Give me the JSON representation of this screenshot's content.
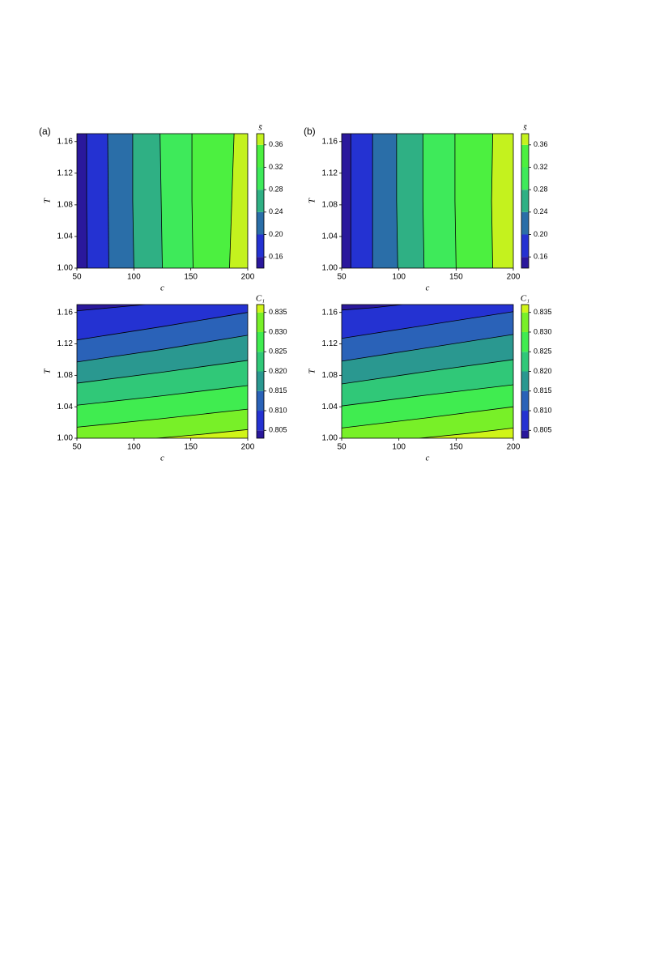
{
  "chart_data": [
    {
      "type": "contour",
      "panel_label": "(a)",
      "xlabel": "c",
      "ylabel": "T",
      "colorbar_label": "s̄",
      "xlim": [
        50,
        200
      ],
      "ylim": [
        1.0,
        1.17
      ],
      "xticks": [
        50,
        100,
        150,
        200
      ],
      "yticks": [
        {
          "value": 1.0,
          "label": "1.00"
        },
        1.04,
        1.08,
        1.12,
        1.16
      ],
      "levels": [
        0.14,
        0.16,
        0.2,
        0.24,
        0.28,
        0.32,
        0.36,
        0.38
      ],
      "colors": [
        "#2a189c",
        "#2432d2",
        "#2a6ea8",
        "#2fb084",
        "#3eea5a",
        "#4cf040",
        "#c4f21e"
      ],
      "colorbar_ticks": [
        0.16,
        {
          "value": 0.2,
          "label": "0.20"
        },
        0.24,
        0.28,
        0.32,
        0.36
      ],
      "contours": [
        {
          "c": [
            59,
            58.5,
            58.5
          ],
          "T": [
            1.0,
            1.085,
            1.17
          ]
        },
        {
          "c": [
            78,
            77.5,
            77
          ],
          "T": [
            1.0,
            1.085,
            1.17
          ]
        },
        {
          "c": [
            100,
            99,
            99
          ],
          "T": [
            1.0,
            1.085,
            1.17
          ]
        },
        {
          "c": [
            125,
            124,
            123
          ],
          "T": [
            1.0,
            1.085,
            1.17
          ]
        },
        {
          "c": [
            152,
            151,
            151
          ],
          "T": [
            1.0,
            1.085,
            1.17
          ]
        },
        {
          "c": [
            184,
            186,
            188
          ],
          "T": [
            1.0,
            1.085,
            1.17
          ]
        }
      ]
    },
    {
      "type": "contour",
      "panel_label": "(b)",
      "xlabel": "c",
      "ylabel": "T",
      "colorbar_label": "s̄",
      "xlim": [
        50,
        200
      ],
      "ylim": [
        1.0,
        1.17
      ],
      "xticks": [
        50,
        100,
        150,
        200
      ],
      "yticks": [
        {
          "value": 1.0,
          "label": "1.00"
        },
        1.04,
        1.08,
        1.12,
        1.16
      ],
      "levels": [
        0.14,
        0.16,
        0.2,
        0.24,
        0.28,
        0.32,
        0.36,
        0.38
      ],
      "colors": [
        "#2a189c",
        "#2432d2",
        "#2a6ea8",
        "#2fb084",
        "#3eea5a",
        "#4cf040",
        "#c4f21e"
      ],
      "colorbar_ticks": [
        0.16,
        {
          "value": 0.2,
          "label": "0.20"
        },
        0.24,
        0.28,
        0.32,
        0.36
      ],
      "contours": [
        {
          "c": [
            58,
            58,
            58
          ],
          "T": [
            1.0,
            1.085,
            1.17
          ]
        },
        {
          "c": [
            77,
            77,
            77
          ],
          "T": [
            1.0,
            1.085,
            1.17
          ]
        },
        {
          "c": [
            99,
            98,
            98
          ],
          "T": [
            1.0,
            1.085,
            1.17
          ]
        },
        {
          "c": [
            122,
            121,
            121
          ],
          "T": [
            1.0,
            1.085,
            1.17
          ]
        },
        {
          "c": [
            150,
            149,
            149
          ],
          "T": [
            1.0,
            1.085,
            1.17
          ]
        },
        {
          "c": [
            182,
            181,
            182
          ],
          "T": [
            1.0,
            1.085,
            1.17
          ]
        }
      ]
    },
    {
      "type": "contour",
      "xlabel": "c",
      "ylabel": "T",
      "colorbar_label": "C₁",
      "xlim": [
        50,
        200
      ],
      "ylim": [
        1.0,
        1.17
      ],
      "xticks": [
        50,
        100,
        150,
        200
      ],
      "yticks": [
        {
          "value": 1.0,
          "label": "1.00"
        },
        1.04,
        1.08,
        1.12,
        1.16
      ],
      "levels": [
        0.803,
        0.805,
        0.81,
        0.815,
        0.82,
        0.825,
        0.83,
        0.835,
        0.837
      ],
      "colors": [
        "#2a189c",
        "#2432d2",
        "#2a62b8",
        "#2a9890",
        "#30c878",
        "#40ec50",
        "#78f028",
        "#d0f418"
      ],
      "colorbar_ticks": [
        0.805,
        {
          "value": 0.81,
          "label": "0.810"
        },
        0.815,
        {
          "value": 0.82,
          "label": "0.820"
        },
        0.825,
        {
          "value": 0.83,
          "label": "0.830"
        },
        0.835
      ],
      "contours": [
        {
          "c": [
            50,
            80,
            110
          ],
          "T": [
            1.162,
            1.166,
            1.17
          ]
        },
        {
          "c": [
            50,
            125,
            200
          ],
          "T": [
            1.125,
            1.142,
            1.16
          ]
        },
        {
          "c": [
            50,
            125,
            200
          ],
          "T": [
            1.097,
            1.113,
            1.131
          ]
        },
        {
          "c": [
            50,
            125,
            200
          ],
          "T": [
            1.07,
            1.084,
            1.099
          ]
        },
        {
          "c": [
            50,
            125,
            200
          ],
          "T": [
            1.042,
            1.054,
            1.067
          ]
        },
        {
          "c": [
            50,
            125,
            200
          ],
          "T": [
            1.014,
            1.025,
            1.037
          ]
        },
        {
          "c": [
            120,
            160,
            200
          ],
          "T": [
            1.0,
            1.005,
            1.011
          ]
        }
      ]
    },
    {
      "type": "contour",
      "xlabel": "c",
      "ylabel": "T",
      "colorbar_label": "C₁",
      "xlim": [
        50,
        200
      ],
      "ylim": [
        1.0,
        1.17
      ],
      "xticks": [
        50,
        100,
        150,
        200
      ],
      "yticks": [
        {
          "value": 1.0,
          "label": "1.00"
        },
        1.04,
        1.08,
        1.12,
        1.16
      ],
      "levels": [
        0.803,
        0.805,
        0.81,
        0.815,
        0.82,
        0.825,
        0.83,
        0.835,
        0.837
      ],
      "colors": [
        "#2a189c",
        "#2432d2",
        "#2a62b8",
        "#2a9890",
        "#30c878",
        "#40ec50",
        "#78f028",
        "#d0f418"
      ],
      "colorbar_ticks": [
        0.805,
        {
          "value": 0.81,
          "label": "0.810"
        },
        0.815,
        {
          "value": 0.82,
          "label": "0.820"
        },
        0.825,
        {
          "value": 0.83,
          "label": "0.830"
        },
        0.835
      ],
      "contours": [
        {
          "c": [
            50,
            78,
            103
          ],
          "T": [
            1.163,
            1.166,
            1.17
          ]
        },
        {
          "c": [
            50,
            125,
            200
          ],
          "T": [
            1.127,
            1.144,
            1.161
          ]
        },
        {
          "c": [
            50,
            125,
            200
          ],
          "T": [
            1.098,
            1.115,
            1.132
          ]
        },
        {
          "c": [
            50,
            125,
            200
          ],
          "T": [
            1.069,
            1.085,
            1.1
          ]
        },
        {
          "c": [
            50,
            125,
            200
          ],
          "T": [
            1.041,
            1.055,
            1.068
          ]
        },
        {
          "c": [
            50,
            125,
            200
          ],
          "T": [
            1.013,
            1.026,
            1.04
          ]
        },
        {
          "c": [
            118,
            160,
            200
          ],
          "T": [
            1.0,
            1.006,
            1.013
          ]
        }
      ]
    }
  ]
}
